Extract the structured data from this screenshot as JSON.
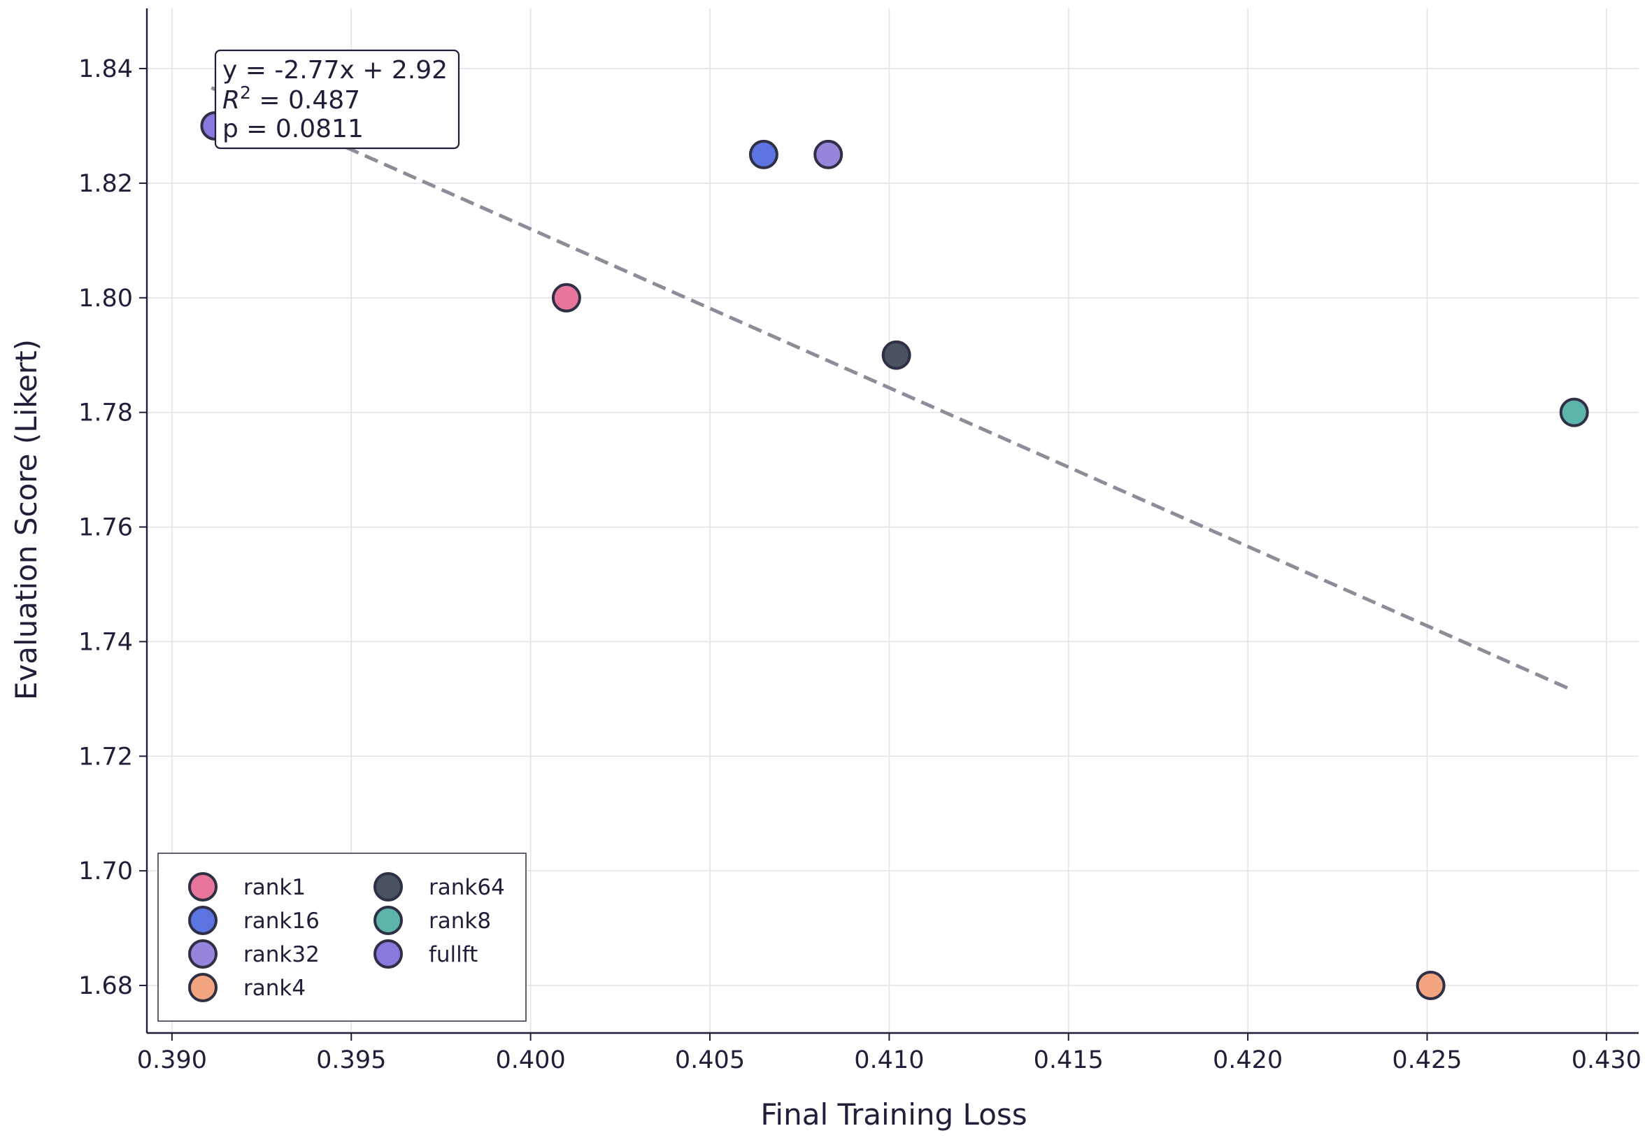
{
  "chart_data": {
    "type": "scatter",
    "title": "",
    "xlabel": "Final Training Loss",
    "ylabel": "Evaluation Score (Likert)",
    "xlim": [
      0.3893,
      0.4309
    ],
    "ylim": [
      1.6717,
      1.8505
    ],
    "xticks": [
      "0.390",
      "0.395",
      "0.400",
      "0.405",
      "0.410",
      "0.415",
      "0.420",
      "0.425",
      "0.430"
    ],
    "yticks": [
      "1.68",
      "1.70",
      "1.72",
      "1.74",
      "1.76",
      "1.78",
      "1.80",
      "1.82",
      "1.84"
    ],
    "grid": true,
    "legend_position": "lower-left",
    "legend_columns": 2,
    "series": [
      {
        "name": "rank1",
        "color": "#e8769b",
        "points": [
          {
            "x": 0.401,
            "y": 1.8
          }
        ]
      },
      {
        "name": "rank16",
        "color": "#5b74df",
        "points": [
          {
            "x": 0.4065,
            "y": 1.825
          }
        ]
      },
      {
        "name": "rank32",
        "color": "#9784db",
        "points": [
          {
            "x": 0.4083,
            "y": 1.825
          }
        ]
      },
      {
        "name": "rank4",
        "color": "#f3a57f",
        "points": [
          {
            "x": 0.4251,
            "y": 1.68
          }
        ]
      },
      {
        "name": "rank64",
        "color": "#4a5160",
        "points": [
          {
            "x": 0.4102,
            "y": 1.79
          }
        ]
      },
      {
        "name": "rank8",
        "color": "#5db4aa",
        "points": [
          {
            "x": 0.4291,
            "y": 1.78
          }
        ]
      },
      {
        "name": "fullft",
        "color": "#8a78de",
        "points": [
          {
            "x": 0.3912,
            "y": 1.83
          }
        ]
      }
    ],
    "fit_line": {
      "slope": -2.77,
      "intercept": 2.92,
      "x_range": [
        0.3911,
        0.429
      ],
      "color": "#8d8d99",
      "style": "dashed"
    },
    "annotation": {
      "equation": "y = -2.77x + 2.92",
      "r2_label": "R",
      "r2_superscript": "2",
      "r2_value": " = 0.487",
      "p_value": "p = 0.0811"
    }
  }
}
